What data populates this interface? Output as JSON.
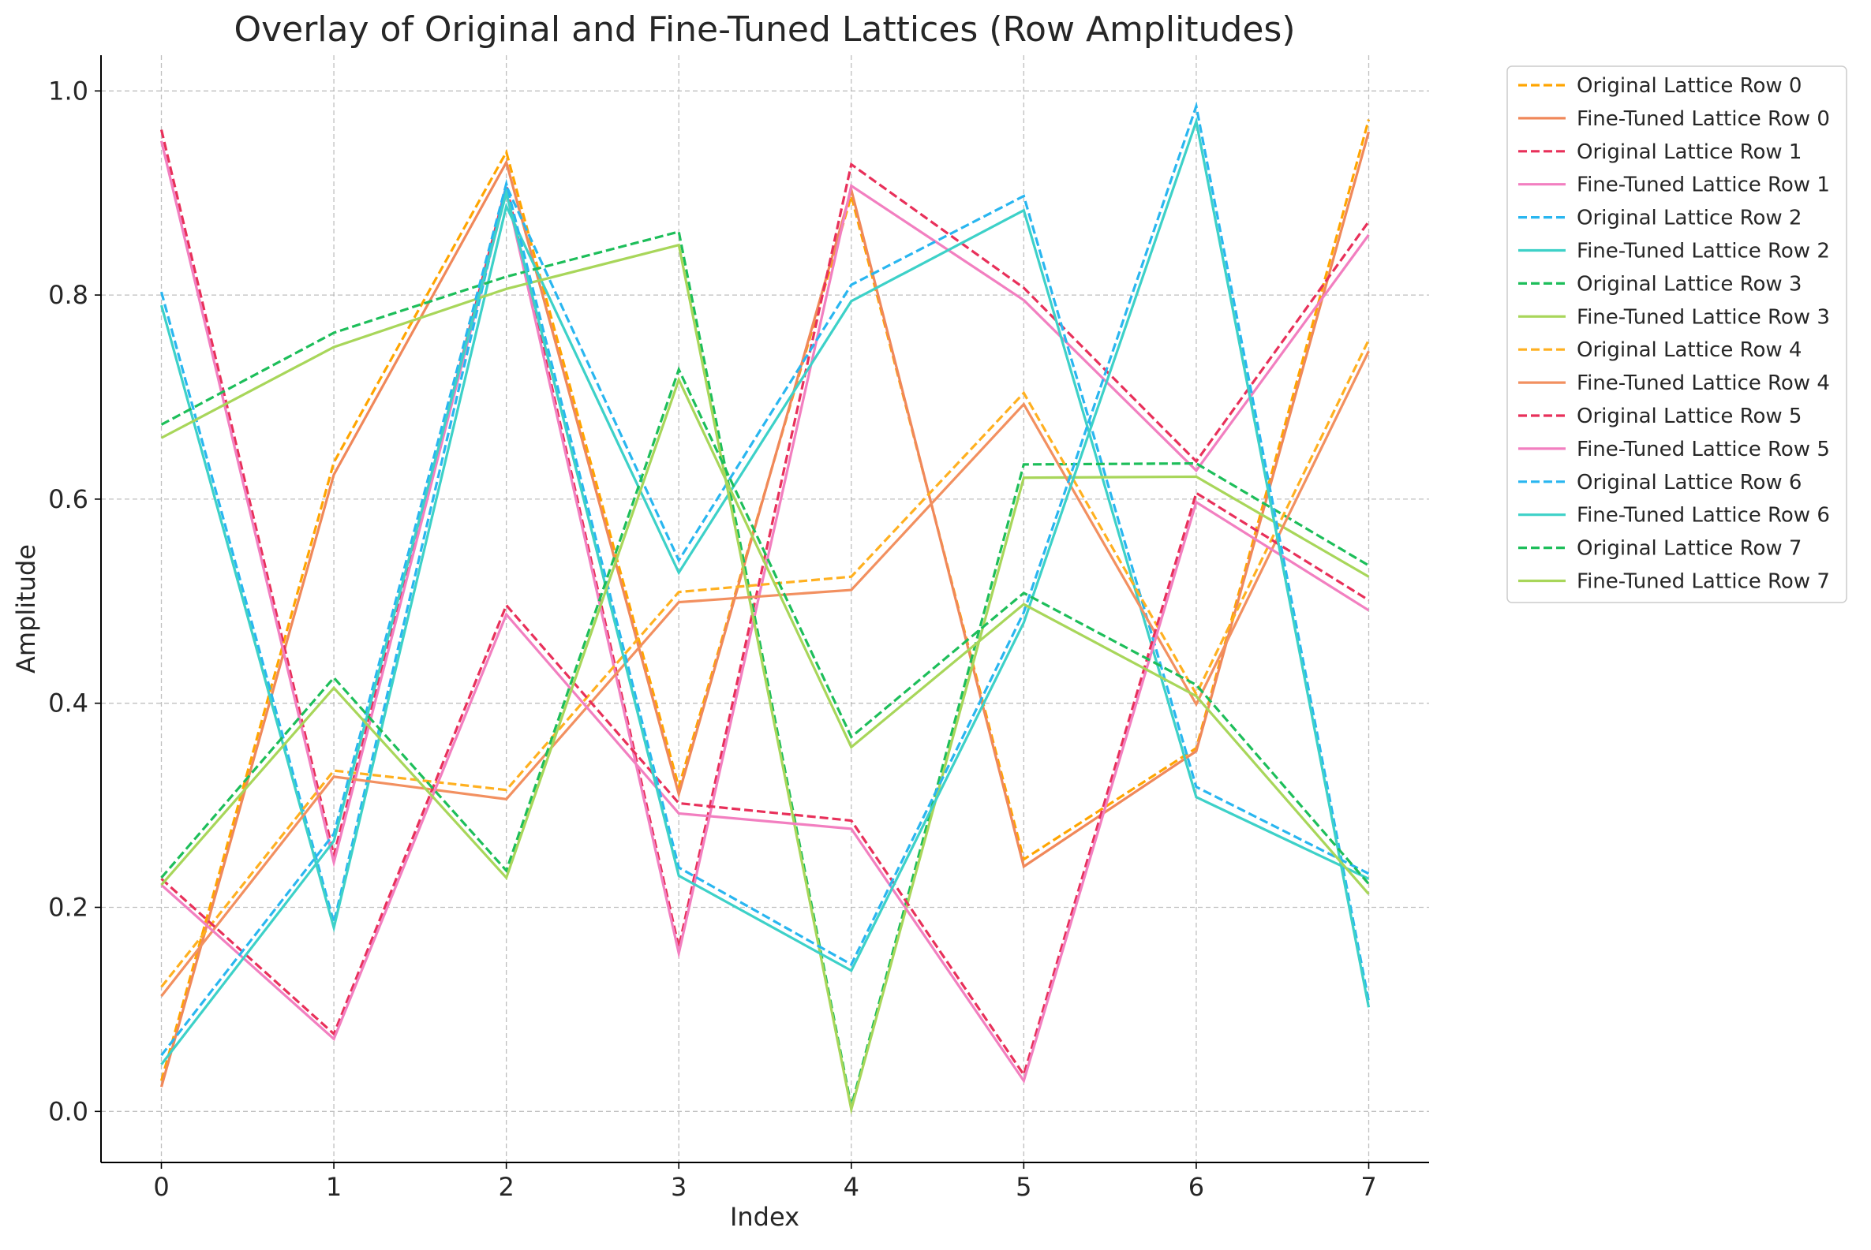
{
  "chart_data": {
    "type": "line",
    "title": "Overlay of Original and Fine-Tuned Lattices (Row Amplitudes)",
    "xlabel": "Index",
    "ylabel": "Amplitude",
    "x": [
      0,
      1,
      2,
      3,
      4,
      5,
      6,
      7
    ],
    "xlim": [
      -0.35,
      7.35
    ],
    "ylim": [
      -0.05,
      1.035
    ],
    "xticks": [
      "0",
      "1",
      "2",
      "3",
      "4",
      "5",
      "6",
      "7"
    ],
    "yticks": [
      "0.0",
      "0.2",
      "0.4",
      "0.6",
      "0.8",
      "1.0"
    ],
    "grid": true,
    "legend_position": "outside-top-right",
    "series": [
      {
        "name": "Original Lattice Row 0",
        "style": "dashed",
        "color": "#FFA500",
        "values": [
          0.03,
          0.636,
          0.94,
          0.318,
          0.897,
          0.247,
          0.356,
          0.972
        ]
      },
      {
        "name": "Fine-Tuned Lattice Row 0",
        "style": "solid",
        "color": "#F0885A",
        "values": [
          0.024,
          0.624,
          0.93,
          0.311,
          0.903,
          0.24,
          0.353,
          0.96
        ]
      },
      {
        "name": "Original Lattice Row 1",
        "style": "dashed",
        "color": "#E8305A",
        "values": [
          0.962,
          0.251,
          0.907,
          0.161,
          0.928,
          0.807,
          0.637,
          0.872
        ]
      },
      {
        "name": "Fine-Tuned Lattice Row 1",
        "style": "solid",
        "color": "#F27FC0",
        "values": [
          0.951,
          0.244,
          0.901,
          0.155,
          0.907,
          0.795,
          0.628,
          0.859
        ]
      },
      {
        "name": "Original Lattice Row 2",
        "style": "dashed",
        "color": "#29B6F0",
        "values": [
          0.803,
          0.185,
          0.907,
          0.54,
          0.81,
          0.897,
          0.318,
          0.233
        ]
      },
      {
        "name": "Fine-Tuned Lattice Row 2",
        "style": "solid",
        "color": "#3DD1C8",
        "values": [
          0.79,
          0.18,
          0.887,
          0.528,
          0.794,
          0.883,
          0.308,
          0.228
        ]
      },
      {
        "name": "Original Lattice Row 3",
        "style": "dashed",
        "color": "#1DBE5A",
        "values": [
          0.673,
          0.763,
          0.818,
          0.862,
          0.005,
          0.634,
          0.635,
          0.535
        ]
      },
      {
        "name": "Fine-Tuned Lattice Row 3",
        "style": "solid",
        "color": "#A8D65A",
        "values": [
          0.66,
          0.749,
          0.806,
          0.849,
          0.002,
          0.621,
          0.622,
          0.524
        ]
      },
      {
        "name": "Original Lattice Row 4",
        "style": "dashed",
        "color": "#FFB020",
        "values": [
          0.122,
          0.334,
          0.315,
          0.509,
          0.524,
          0.704,
          0.409,
          0.756
        ]
      },
      {
        "name": "Fine-Tuned Lattice Row 4",
        "style": "solid",
        "color": "#F29060",
        "values": [
          0.113,
          0.328,
          0.306,
          0.499,
          0.511,
          0.693,
          0.399,
          0.745
        ]
      },
      {
        "name": "Original Lattice Row 5",
        "style": "dashed",
        "color": "#E8305A",
        "values": [
          0.228,
          0.076,
          0.496,
          0.302,
          0.285,
          0.036,
          0.606,
          0.501
        ]
      },
      {
        "name": "Fine-Tuned Lattice Row 5",
        "style": "solid",
        "color": "#F27FC0",
        "values": [
          0.222,
          0.071,
          0.487,
          0.292,
          0.277,
          0.03,
          0.597,
          0.491
        ]
      },
      {
        "name": "Original Lattice Row 6",
        "style": "dashed",
        "color": "#29B6F0",
        "values": [
          0.055,
          0.272,
          0.909,
          0.239,
          0.144,
          0.489,
          0.985,
          0.108
        ]
      },
      {
        "name": "Fine-Tuned Lattice Row 6",
        "style": "solid",
        "color": "#3DD1C8",
        "values": [
          0.046,
          0.265,
          0.9,
          0.231,
          0.138,
          0.479,
          0.97,
          0.102
        ]
      },
      {
        "name": "Original Lattice Row 7",
        "style": "dashed",
        "color": "#1DBE5A",
        "values": [
          0.229,
          0.425,
          0.236,
          0.727,
          0.367,
          0.508,
          0.418,
          0.223
        ]
      },
      {
        "name": "Fine-Tuned Lattice Row 7",
        "style": "solid",
        "color": "#A8D65A",
        "values": [
          0.222,
          0.415,
          0.229,
          0.717,
          0.357,
          0.497,
          0.407,
          0.213
        ]
      }
    ]
  }
}
